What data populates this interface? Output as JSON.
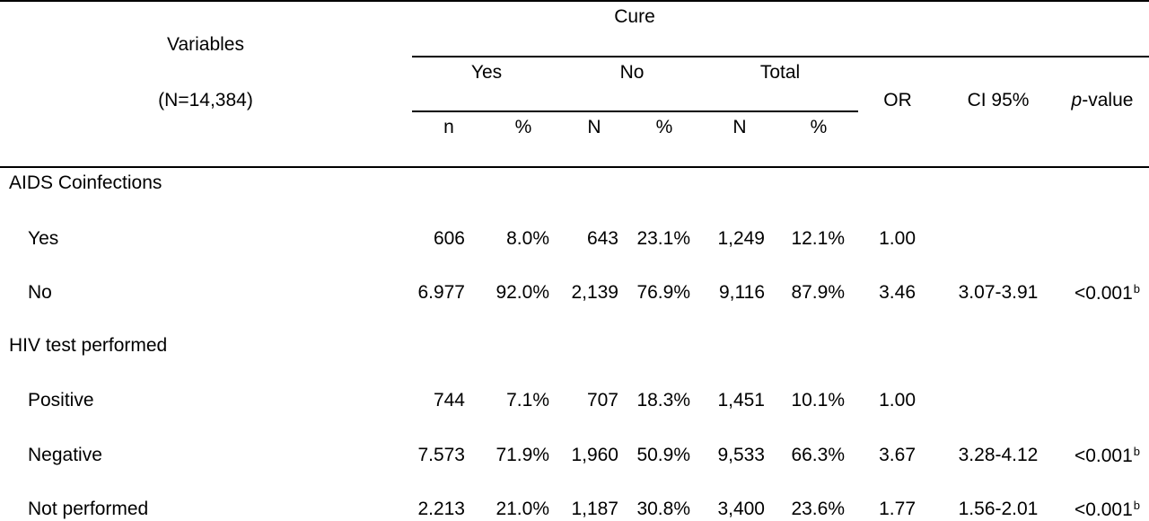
{
  "header": {
    "variables_label": "Variables",
    "n_label": "(N=14,384)",
    "cure_label": "Cure",
    "groups": {
      "yes": "Yes",
      "no": "No",
      "total": "Total"
    },
    "subcols": {
      "yes_n": "n",
      "yes_pct": "%",
      "no_n": "N",
      "no_pct": "%",
      "total_n": "N",
      "total_pct": "%"
    },
    "or_label": "OR",
    "ci_label": "CI 95%",
    "pvalue_prefix": "p",
    "pvalue_suffix": "-value"
  },
  "sections": [
    {
      "title": "AIDS Coinfections",
      "rows": [
        {
          "label": "Yes",
          "yes_n": "606",
          "yes_pct": "8.0%",
          "no_n": "643",
          "no_pct": "23.1%",
          "total_n": "1,249",
          "total_pct": "12.1%",
          "or": "1.00",
          "ci": "",
          "p": "",
          "p_sup": ""
        },
        {
          "label": "No",
          "yes_n": "6.977",
          "yes_pct": "92.0%",
          "no_n": "2,139",
          "no_pct": "76.9%",
          "total_n": "9,116",
          "total_pct": "87.9%",
          "or": "3.46",
          "ci": "3.07-3.91",
          "p": "<0.001",
          "p_sup": "b"
        }
      ]
    },
    {
      "title": "HIV test performed",
      "rows": [
        {
          "label": "Positive",
          "yes_n": "744",
          "yes_pct": "7.1%",
          "no_n": "707",
          "no_pct": "18.3%",
          "total_n": "1,451",
          "total_pct": "10.1%",
          "or": "1.00",
          "ci": "",
          "p": "",
          "p_sup": ""
        },
        {
          "label": "Negative",
          "yes_n": "7.573",
          "yes_pct": "71.9%",
          "no_n": "1,960",
          "no_pct": "50.9%",
          "total_n": "9,533",
          "total_pct": "66.3%",
          "or": "3.67",
          "ci": "3.28-4.12",
          "p": "<0.001",
          "p_sup": "b"
        },
        {
          "label": "Not performed",
          "yes_n": "2.213",
          "yes_pct": "21.0%",
          "no_n": "1,187",
          "no_pct": "30.8%",
          "total_n": "3,400",
          "total_pct": "23.6%",
          "or": "1.77",
          "ci": "1.56-2.01",
          "p": "<0.001",
          "p_sup": "b"
        }
      ]
    }
  ]
}
